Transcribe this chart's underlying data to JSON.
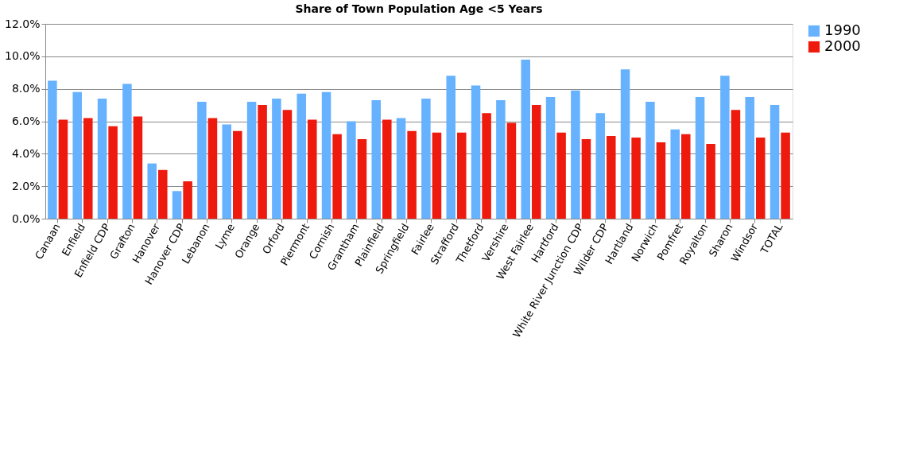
{
  "chart_data": {
    "type": "bar",
    "title": "Share of Town Population Age <5 Years",
    "categories": [
      "Canaan",
      "Enfield",
      "Enfield CDP",
      "Grafton",
      "Hanover",
      "Hanover CDP",
      "Lebanon",
      "Lyme",
      "Orange",
      "Orford",
      "Piermont",
      "Cornish",
      "Grantham",
      "Plainfield",
      "Springfield",
      "Fairlee",
      "Strafford",
      "Thetford",
      "Vershire",
      "West Fairlee",
      "Hartford",
      "White River Junction CDP",
      "Wilder CDP",
      "Hartland",
      "Norwich",
      "Pomfret",
      "Royalton",
      "Sharon",
      "Windsor",
      "TOTAL"
    ],
    "series": [
      {
        "name": "1990",
        "color": "#66b2ff",
        "values": [
          8.5,
          7.8,
          7.4,
          8.3,
          3.4,
          1.7,
          7.2,
          5.8,
          7.2,
          7.4,
          7.7,
          7.8,
          6.0,
          7.3,
          6.2,
          7.4,
          8.8,
          8.2,
          7.3,
          9.8,
          7.5,
          7.9,
          6.5,
          9.2,
          7.2,
          5.5,
          7.5,
          8.8,
          7.5,
          7.0
        ]
      },
      {
        "name": "2000",
        "color": "#ee1a0e",
        "values": [
          6.1,
          6.2,
          5.7,
          6.3,
          3.0,
          2.3,
          6.2,
          5.4,
          7.0,
          6.7,
          6.1,
          5.2,
          4.9,
          6.1,
          5.4,
          5.3,
          5.3,
          6.5,
          5.9,
          7.0,
          5.3,
          4.9,
          5.1,
          5.0,
          4.7,
          5.2,
          4.6,
          6.7,
          5.0,
          5.3
        ]
      }
    ],
    "ylim": [
      0,
      12
    ],
    "yticks": [
      {
        "value": 0,
        "label": "0.0%"
      },
      {
        "value": 2,
        "label": "2.0%"
      },
      {
        "value": 4,
        "label": "4.0%"
      },
      {
        "value": 6,
        "label": "6.0%"
      },
      {
        "value": 8,
        "label": "8.0%"
      },
      {
        "value": 10,
        "label": "10.0%"
      },
      {
        "value": 12,
        "label": "12.0%"
      }
    ],
    "grid": "y",
    "legend": "right"
  }
}
